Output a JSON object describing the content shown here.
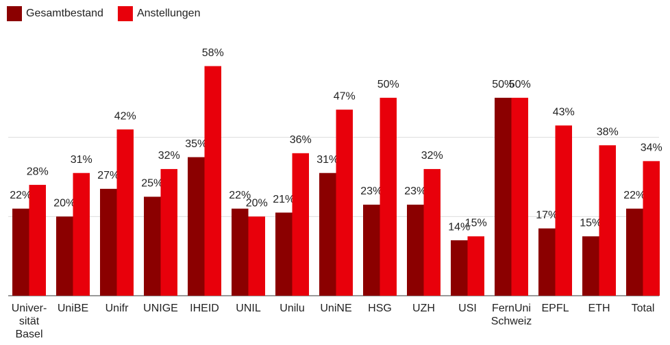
{
  "chart_data": {
    "type": "bar",
    "categories": [
      "Univer-\nsität\nBasel",
      "UniBE",
      "Unifr",
      "UNIGE",
      "IHEID",
      "UNIL",
      "Unilu",
      "UniNE",
      "HSG",
      "UZH",
      "USI",
      "FernUni\nSchweiz",
      "EPFL",
      "ETH",
      "Total"
    ],
    "series": [
      {
        "name": "Gesamtbestand",
        "color": "#8b0000",
        "values": [
          22,
          20,
          27,
          25,
          35,
          22,
          21,
          31,
          23,
          23,
          14,
          50,
          17,
          15,
          22
        ],
        "value_labels": [
          "22%",
          "20%",
          "27%",
          "25%",
          "35%",
          "22%",
          "21%",
          "31%",
          "23%",
          "23%",
          "14%",
          "50%",
          "17%",
          "15%",
          "22%"
        ]
      },
      {
        "name": "Anstellungen",
        "color": "#e8000b",
        "values": [
          28,
          31,
          42,
          32,
          58,
          20,
          36,
          47,
          50,
          32,
          15,
          50,
          43,
          38,
          34
        ],
        "value_labels": [
          "28%",
          "31%",
          "42%",
          "32%",
          "58%",
          "20%",
          "36%",
          "47%",
          "50%",
          "32%",
          "15%",
          "50%",
          "43%",
          "38%",
          "34%"
        ]
      }
    ],
    "ylim": [
      0,
      60
    ],
    "yticks": [
      0,
      20,
      40
    ],
    "grid": true,
    "legend": "top-left"
  }
}
